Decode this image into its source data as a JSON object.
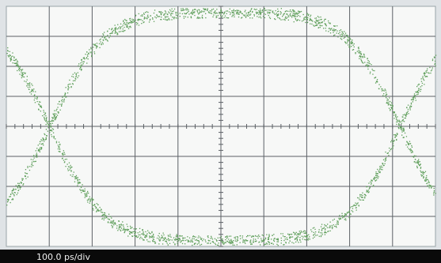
{
  "status_bar": {
    "timebase": "100.0 ps/div"
  }
}
